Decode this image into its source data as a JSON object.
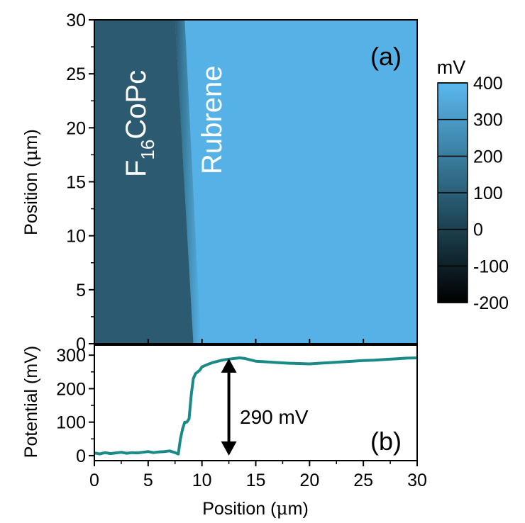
{
  "chart_data": [
    {
      "panel": "(a)",
      "type": "heatmap",
      "xlim": [
        0,
        30
      ],
      "ylim": [
        0,
        30
      ],
      "ylabel": "Position (μm)",
      "ylabel_parts": [
        "Position (",
        "μ",
        "m)"
      ],
      "y_ticks": [
        "0",
        "5",
        "10",
        "15",
        "20",
        "25",
        "30"
      ],
      "colorbar": {
        "unit": "mV",
        "range": [
          -200,
          400
        ],
        "ticks": [
          "400",
          "300",
          "200",
          "100",
          "0",
          "-100",
          "-200"
        ],
        "color_low": "#000000",
        "color_high": "#5ab8ef"
      },
      "regions": [
        {
          "label": "F16CoPc",
          "label_main": "F",
          "label_sub": "16",
          "label_rest": "CoPc",
          "x_range": [
            0,
            7.6
          ],
          "potential_mV": 10,
          "color": "#2c5a70"
        },
        {
          "label": "Rubrene",
          "x_range": [
            8.2,
            30
          ],
          "potential_mV": 285,
          "color": "#56b2e6"
        }
      ],
      "boundary_x_at_top": 7.5,
      "boundary_x_at_bottom": 9.2
    },
    {
      "panel": "(b)",
      "type": "line",
      "xlabel": "Position (μm)",
      "xlabel_parts": [
        "Position (",
        "μ",
        "m)"
      ],
      "ylabel": "Potential (mV)",
      "xlim": [
        0,
        30
      ],
      "ylim": [
        -15,
        330
      ],
      "x_ticks": [
        "0",
        "5",
        "10",
        "15",
        "20",
        "25",
        "30"
      ],
      "y_ticks": [
        "0",
        "100",
        "200",
        "300"
      ],
      "line_color": "#1a8a86",
      "series": [
        {
          "x": [
            0,
            0.5,
            1,
            1.5,
            2,
            2.5,
            3,
            3.5,
            4,
            4.5,
            5,
            5.5,
            6,
            6.5,
            7,
            7.4,
            7.8,
            8.0,
            8.2,
            8.4,
            8.6,
            8.8,
            9.0,
            9.2,
            9.4,
            9.6,
            9.8,
            10.0,
            10.5,
            11,
            11.5,
            12,
            12.5,
            13,
            13.5,
            14,
            14.5,
            15,
            16,
            17,
            18,
            19,
            20,
            21,
            22,
            23,
            24,
            25,
            26,
            27,
            28,
            29,
            30
          ],
          "y": [
            8,
            5,
            9,
            6,
            8,
            10,
            7,
            9,
            8,
            10,
            12,
            9,
            11,
            12,
            14,
            10,
            5,
            50,
            80,
            100,
            100,
            110,
            180,
            230,
            245,
            250,
            255,
            265,
            272,
            278,
            282,
            286,
            288,
            290,
            292,
            290,
            286,
            282,
            280,
            278,
            276,
            275,
            274,
            276,
            278,
            280,
            282,
            284,
            285,
            287,
            289,
            291,
            292
          ]
        }
      ],
      "annotation": {
        "text": "290 mV",
        "x": 12.5,
        "y_from": 0,
        "y_to": 290
      }
    }
  ]
}
